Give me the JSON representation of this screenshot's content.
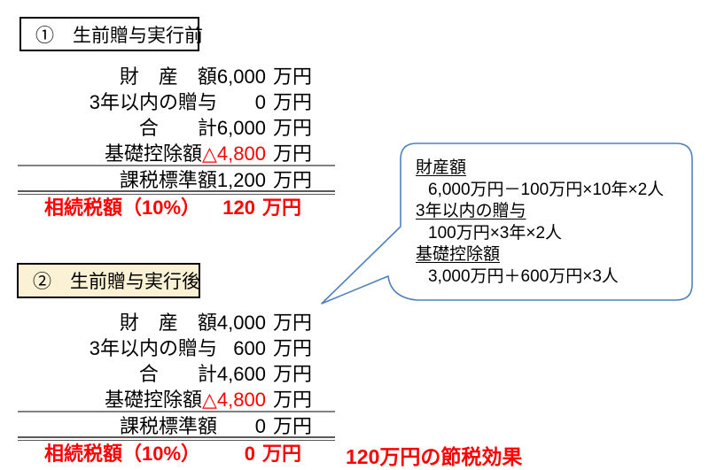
{
  "colors": {
    "red": "#ff0000",
    "callout_border": "#4f81bd",
    "title2_fill": "#fbf1d4",
    "rule_gray": "#808080",
    "rule_dark_gray": "#595959"
  },
  "section_before": {
    "title": "①　生前贈与実行前",
    "rows": [
      {
        "label": "財　産　額",
        "value": "6,000",
        "unit": "万円",
        "style": "normal"
      },
      {
        "label": "3年以内の贈与",
        "value": "0",
        "unit": "万円",
        "style": "normal"
      },
      {
        "label": "合　　計",
        "value": "6,000",
        "unit": "万円",
        "style": "normal"
      },
      {
        "label": "基礎控除額",
        "value": "△4,800",
        "unit": "万円",
        "style": "value-red"
      },
      {
        "label": "課税標準額",
        "value": "1,200",
        "unit": "万円",
        "style": "normal",
        "rule_above": "single"
      },
      {
        "label": "相続税額（10%）",
        "value": "120",
        "unit": "万円",
        "style": "total-red",
        "rule_above": "double"
      }
    ]
  },
  "section_after": {
    "title": "②　生前贈与実行後",
    "rows": [
      {
        "label": "財　産　額",
        "value": "4,000",
        "unit": "万円",
        "style": "normal"
      },
      {
        "label": "3年以内の贈与",
        "value": "600",
        "unit": "万円",
        "style": "normal"
      },
      {
        "label": "合　　計",
        "value": "4,600",
        "unit": "万円",
        "style": "normal"
      },
      {
        "label": "基礎控除額",
        "value": "△4,800",
        "unit": "万円",
        "style": "value-red"
      },
      {
        "label": "課税標準額",
        "value": "0",
        "unit": "万円",
        "style": "normal",
        "rule_above": "single"
      },
      {
        "label": "相続税額（10%）",
        "value": "0",
        "unit": "万円",
        "style": "total-red",
        "rule_above": "double"
      }
    ],
    "savings_note": "120万円の節税効果"
  },
  "callout": {
    "items": [
      {
        "heading": "財産額",
        "formula": "6,000万円－100万円×10年×2人"
      },
      {
        "heading": "3年以内の贈与",
        "formula": "100万円×3年×2人"
      },
      {
        "heading": "基礎控除額",
        "formula": "3,000万円＋600万円×3人"
      }
    ]
  }
}
